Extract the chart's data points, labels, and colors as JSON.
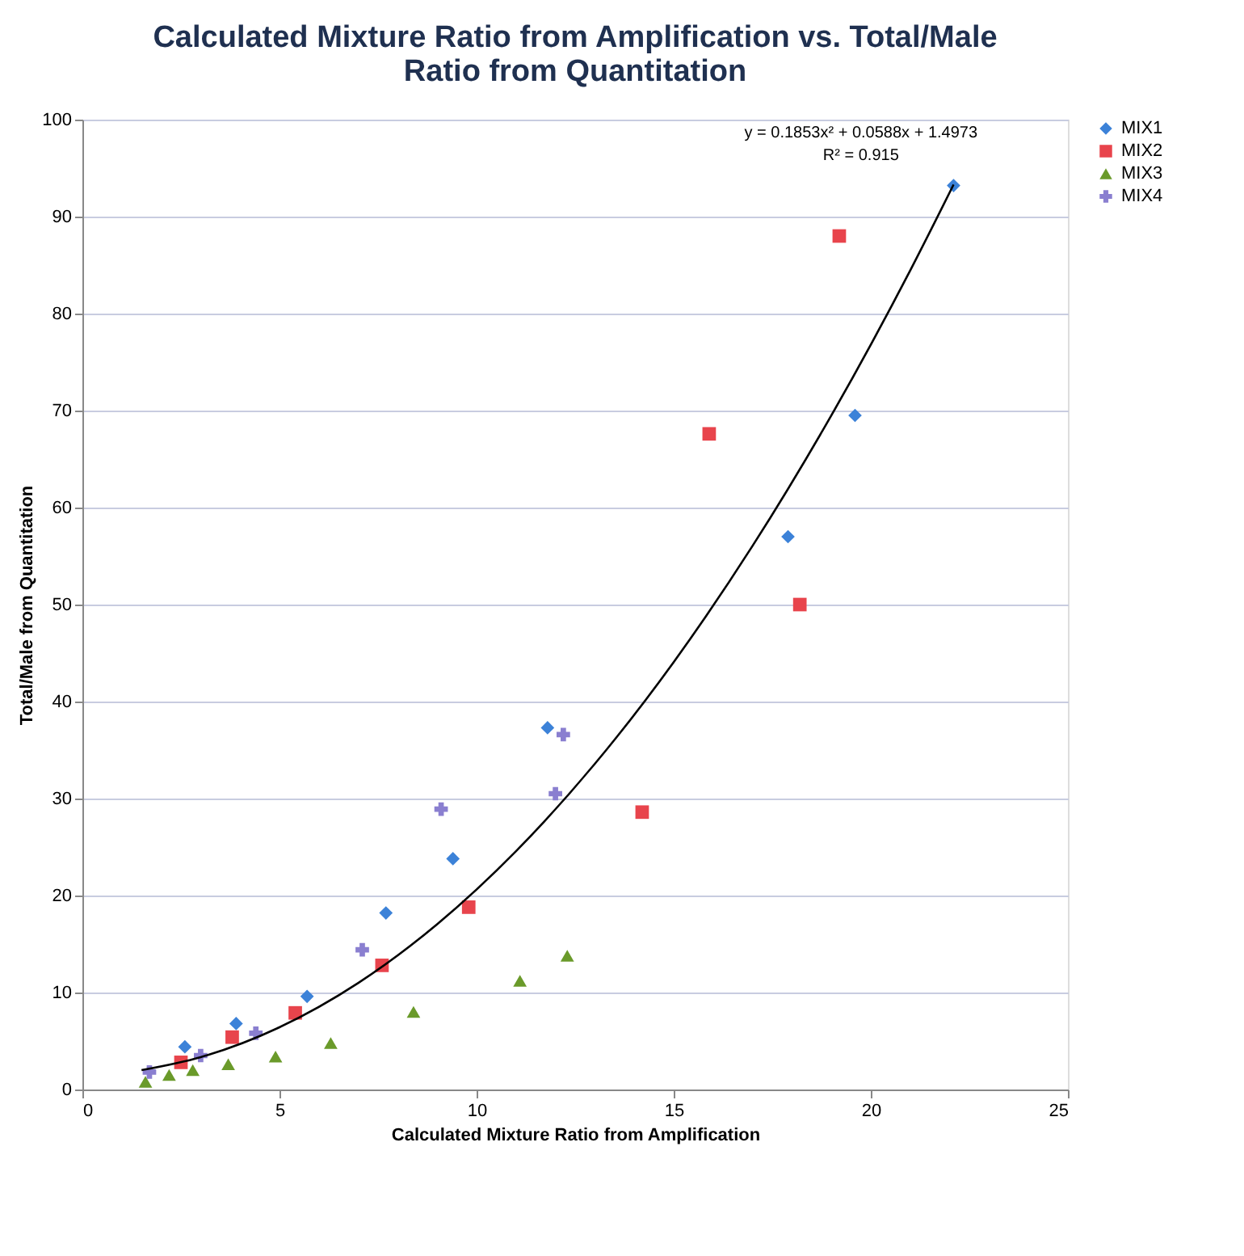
{
  "chart_data": {
    "type": "scatter",
    "title": [
      "Calculated Mixture Ratio from Amplification vs. Total/Male",
      "Ratio from Quantitation"
    ],
    "xlabel": "Calculated Mixture Ratio from Amplification",
    "ylabel": "Total/Male from Quantitation",
    "xlim": [
      0,
      25
    ],
    "xticks": [
      0,
      5,
      10,
      15,
      20,
      25
    ],
    "ylim": [
      0,
      100
    ],
    "yticks": [
      0,
      10,
      20,
      30,
      40,
      50,
      60,
      70,
      80,
      90,
      100
    ],
    "grid": "y",
    "legend": "right",
    "annotations": [
      "y = 0.1853x² + 0.0588x + 1.4973",
      "R² = 0.915"
    ],
    "series": [
      {
        "name": "MIX1",
        "color": "#3c82d8",
        "marker": "diamond",
        "x": [
          2.6,
          3.9,
          5.7,
          7.7,
          9.4,
          11.8,
          17.9,
          19.6,
          22.1
        ],
        "values": [
          4.4,
          6.8,
          9.6,
          18.2,
          23.8,
          37.3,
          57,
          69.5,
          93.2
        ]
      },
      {
        "name": "MIX2",
        "color": "#e8444c",
        "marker": "square",
        "x": [
          2.5,
          3.8,
          5.4,
          7.6,
          9.8,
          14.2,
          15.9,
          18.2,
          19.2
        ],
        "values": [
          2.8,
          5.4,
          7.9,
          12.8,
          18.8,
          28.6,
          67.6,
          50,
          88
        ]
      },
      {
        "name": "MIX3",
        "color": "#6a9a2a",
        "marker": "triangle",
        "x": [
          1.6,
          2.2,
          2.8,
          3.7,
          4.9,
          6.3,
          8.4,
          11.1,
          12.3
        ],
        "values": [
          0.8,
          1.5,
          2,
          2.6,
          3.4,
          4.8,
          8,
          11.2,
          13.8
        ]
      },
      {
        "name": "MIX4",
        "color": "#8a7fd0",
        "marker": "cross",
        "x": [
          1.7,
          3.0,
          4.4,
          7.1,
          9.1,
          12.0,
          12.2
        ],
        "values": [
          1.8,
          3.5,
          5.8,
          14.4,
          28.9,
          30.5,
          36.6
        ]
      },
      {
        "type": "line",
        "color": "#000000",
        "marker": "none",
        "x": [
          1.5,
          3,
          5,
          7,
          9,
          11,
          13,
          15,
          17,
          19,
          21,
          22.1
        ],
        "values": [
          2.0,
          3.34,
          6.42,
          10.99,
          17.04,
          24.57,
          33.58,
          44.07,
          56.05,
          69.51,
          84.45,
          93.3
        ]
      }
    ]
  }
}
